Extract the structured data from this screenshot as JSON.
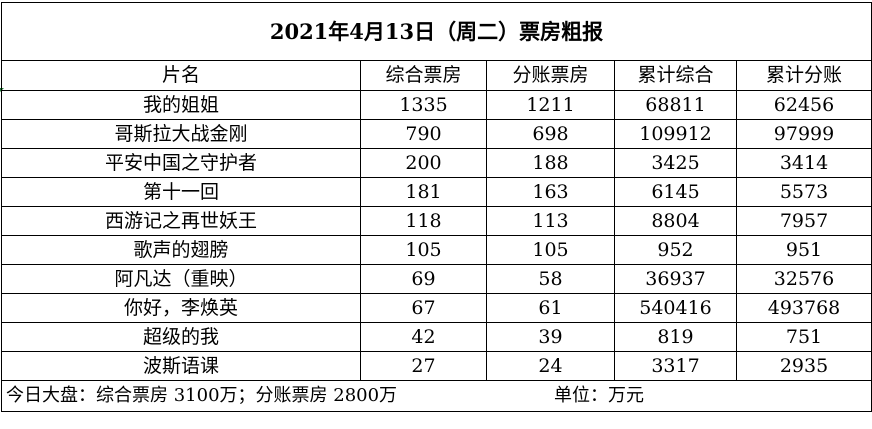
{
  "title": "2021年4月13日（周二）票房粗报",
  "headers": [
    "片名",
    "综合票房",
    "分账票房",
    "累计综合",
    "累计分账"
  ],
  "rows": [
    {
      "name": "我的姐姐",
      "gross": "1335",
      "split": "1211",
      "cum_gross": "68811",
      "cum_split": "62456"
    },
    {
      "name": "哥斯拉大战金刚",
      "gross": "790",
      "split": "698",
      "cum_gross": "109912",
      "cum_split": "97999"
    },
    {
      "name": "平安中国之守护者",
      "gross": "200",
      "split": "188",
      "cum_gross": "3425",
      "cum_split": "3414"
    },
    {
      "name": "第十一回",
      "gross": "181",
      "split": "163",
      "cum_gross": "6145",
      "cum_split": "5573"
    },
    {
      "name": "西游记之再世妖王",
      "gross": "118",
      "split": "113",
      "cum_gross": "8804",
      "cum_split": "7957"
    },
    {
      "name": "歌声的翅膀",
      "gross": "105",
      "split": "105",
      "cum_gross": "952",
      "cum_split": "951"
    },
    {
      "name": "阿凡达（重映）",
      "gross": "69",
      "split": "58",
      "cum_gross": "36937",
      "cum_split": "32576"
    },
    {
      "name": "你好，李焕英",
      "gross": "67",
      "split": "61",
      "cum_gross": "540416",
      "cum_split": "493768"
    },
    {
      "name": "超级的我",
      "gross": "42",
      "split": "39",
      "cum_gross": "819",
      "cum_split": "751"
    },
    {
      "name": "波斯语课",
      "gross": "27",
      "split": "24",
      "cum_gross": "3317",
      "cum_split": "2935"
    }
  ],
  "footer": {
    "total": "今日大盘：综合票房 3100万；分账票房 2800万",
    "unit": "单位：万元"
  },
  "colors": {
    "border": "#000000",
    "background": "#ffffff",
    "cell_marker": "#1e7e34"
  }
}
